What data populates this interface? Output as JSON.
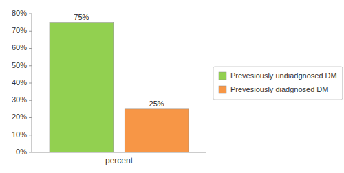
{
  "chart_data": {
    "type": "bar",
    "categories": [
      "percent"
    ],
    "series": [
      {
        "name": "Prevesiously undiadgnosed DM",
        "color": "#92d050",
        "values": [
          75
        ],
        "value_labels": [
          "75%"
        ]
      },
      {
        "name": "Prevesiously diadgnosed DM",
        "color": "#f79646",
        "values": [
          25
        ],
        "value_labels": [
          "25%"
        ]
      }
    ],
    "ylim": [
      0,
      80
    ],
    "yticks": [
      {
        "value": 0,
        "label": "0%"
      },
      {
        "value": 10,
        "label": "10%"
      },
      {
        "value": 20,
        "label": "20%"
      },
      {
        "value": 30,
        "label": "30%"
      },
      {
        "value": 40,
        "label": "40%"
      },
      {
        "value": 50,
        "label": "50%"
      },
      {
        "value": 60,
        "label": "60%"
      },
      {
        "value": 70,
        "label": "70%"
      },
      {
        "value": 80,
        "label": "80%"
      }
    ],
    "grid": false,
    "data_labels": true,
    "legend": "right"
  }
}
